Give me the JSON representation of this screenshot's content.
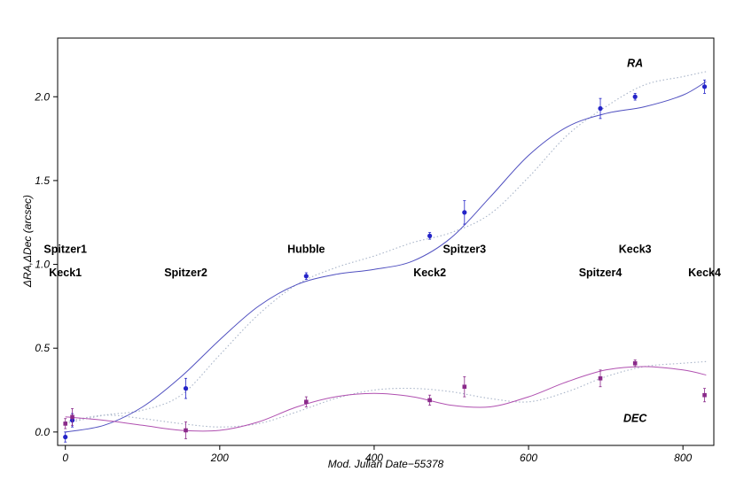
{
  "chart_data": {
    "type": "scatter",
    "title": "",
    "xlabel": "Mod. Julian Date−55378",
    "ylabel": "ΔRA,ΔDec (arcsec)",
    "xlim": [
      -10,
      840
    ],
    "ylim": [
      -0.08,
      2.35
    ],
    "x_ticks": [
      0,
      200,
      400,
      600,
      800
    ],
    "y_ticks": [
      0.0,
      0.5,
      1.0,
      1.5,
      2.0
    ],
    "x_tick_labels": [
      "0",
      "200",
      "400",
      "600",
      "800"
    ],
    "y_tick_labels": [
      "0.0",
      "0.5",
      "1.0",
      "1.5",
      "2.0"
    ],
    "grid": false,
    "series": [
      {
        "name": "RA",
        "color": "#2424c8",
        "fit_color": "#5050c0",
        "points": [
          {
            "x": 0,
            "y": -0.03,
            "err": 0.03
          },
          {
            "x": 9,
            "y": 0.07,
            "err": 0.04
          },
          {
            "x": 156,
            "y": 0.26,
            "err": 0.06
          },
          {
            "x": 312,
            "y": 0.93,
            "err": 0.02
          },
          {
            "x": 472,
            "y": 1.17,
            "err": 0.02
          },
          {
            "x": 517,
            "y": 1.31,
            "err": 0.07
          },
          {
            "x": 693,
            "y": 1.93,
            "err": 0.06
          },
          {
            "x": 738,
            "y": 2.0,
            "err": 0.02
          },
          {
            "x": 828,
            "y": 2.06,
            "err": 0.04
          }
        ],
        "fit": [
          [
            0,
            0.0
          ],
          [
            50,
            0.04
          ],
          [
            100,
            0.15
          ],
          [
            150,
            0.33
          ],
          [
            200,
            0.55
          ],
          [
            250,
            0.75
          ],
          [
            300,
            0.88
          ],
          [
            350,
            0.94
          ],
          [
            400,
            0.97
          ],
          [
            450,
            1.02
          ],
          [
            500,
            1.16
          ],
          [
            550,
            1.4
          ],
          [
            600,
            1.65
          ],
          [
            650,
            1.82
          ],
          [
            700,
            1.9
          ],
          [
            750,
            1.94
          ],
          [
            800,
            2.01
          ],
          [
            830,
            2.09
          ]
        ],
        "alt_fit": [
          [
            0,
            0.05
          ],
          [
            50,
            0.1
          ],
          [
            100,
            0.13
          ],
          [
            150,
            0.22
          ],
          [
            200,
            0.46
          ],
          [
            250,
            0.7
          ],
          [
            300,
            0.88
          ],
          [
            350,
            0.98
          ],
          [
            400,
            1.05
          ],
          [
            450,
            1.13
          ],
          [
            500,
            1.19
          ],
          [
            550,
            1.3
          ],
          [
            600,
            1.52
          ],
          [
            650,
            1.77
          ],
          [
            700,
            1.94
          ],
          [
            750,
            2.07
          ],
          [
            800,
            2.12
          ],
          [
            830,
            2.15
          ]
        ]
      },
      {
        "name": "DEC",
        "color": "#8a2a8a",
        "fit_color": "#b050b0",
        "points": [
          {
            "x": 0,
            "y": 0.05,
            "err": 0.03
          },
          {
            "x": 9,
            "y": 0.09,
            "err": 0.05
          },
          {
            "x": 156,
            "y": 0.01,
            "err": 0.05
          },
          {
            "x": 312,
            "y": 0.18,
            "err": 0.03
          },
          {
            "x": 472,
            "y": 0.19,
            "err": 0.03
          },
          {
            "x": 517,
            "y": 0.27,
            "err": 0.06
          },
          {
            "x": 693,
            "y": 0.32,
            "err": 0.05
          },
          {
            "x": 738,
            "y": 0.41,
            "err": 0.02
          },
          {
            "x": 828,
            "y": 0.22,
            "err": 0.04
          }
        ],
        "fit": [
          [
            0,
            0.09
          ],
          [
            50,
            0.07
          ],
          [
            100,
            0.04
          ],
          [
            150,
            0.01
          ],
          [
            200,
            0.01
          ],
          [
            250,
            0.06
          ],
          [
            300,
            0.15
          ],
          [
            350,
            0.21
          ],
          [
            400,
            0.23
          ],
          [
            450,
            0.21
          ],
          [
            500,
            0.16
          ],
          [
            550,
            0.15
          ],
          [
            600,
            0.21
          ],
          [
            650,
            0.3
          ],
          [
            700,
            0.37
          ],
          [
            750,
            0.39
          ],
          [
            800,
            0.37
          ],
          [
            830,
            0.34
          ]
        ],
        "alt_fit": [
          [
            0,
            0.06
          ],
          [
            50,
            0.1
          ],
          [
            100,
            0.08
          ],
          [
            150,
            0.05
          ],
          [
            200,
            0.03
          ],
          [
            250,
            0.05
          ],
          [
            300,
            0.12
          ],
          [
            350,
            0.2
          ],
          [
            400,
            0.25
          ],
          [
            450,
            0.26
          ],
          [
            500,
            0.24
          ],
          [
            550,
            0.2
          ],
          [
            600,
            0.18
          ],
          [
            650,
            0.24
          ],
          [
            700,
            0.33
          ],
          [
            750,
            0.39
          ],
          [
            800,
            0.41
          ],
          [
            830,
            0.42
          ]
        ]
      }
    ],
    "alt_fit_color": "#a8b4c8",
    "annotations": [
      {
        "text": "Spitzer1",
        "x": 0,
        "y": 1.09
      },
      {
        "text": "Keck1",
        "x": 0,
        "y": 0.95
      },
      {
        "text": "Spitzer2",
        "x": 156,
        "y": 0.95
      },
      {
        "text": "Hubble",
        "x": 312,
        "y": 1.09
      },
      {
        "text": "Keck2",
        "x": 472,
        "y": 0.95
      },
      {
        "text": "Spitzer3",
        "x": 517,
        "y": 1.09
      },
      {
        "text": "Spitzer4",
        "x": 693,
        "y": 0.95
      },
      {
        "text": "Keck3",
        "x": 738,
        "y": 1.09
      },
      {
        "text": "Keck4",
        "x": 828,
        "y": 0.95
      },
      {
        "text": "RA",
        "x": 738,
        "y": 2.2,
        "style": "series"
      },
      {
        "text": "DEC",
        "x": 738,
        "y": 0.08,
        "style": "series"
      }
    ]
  }
}
